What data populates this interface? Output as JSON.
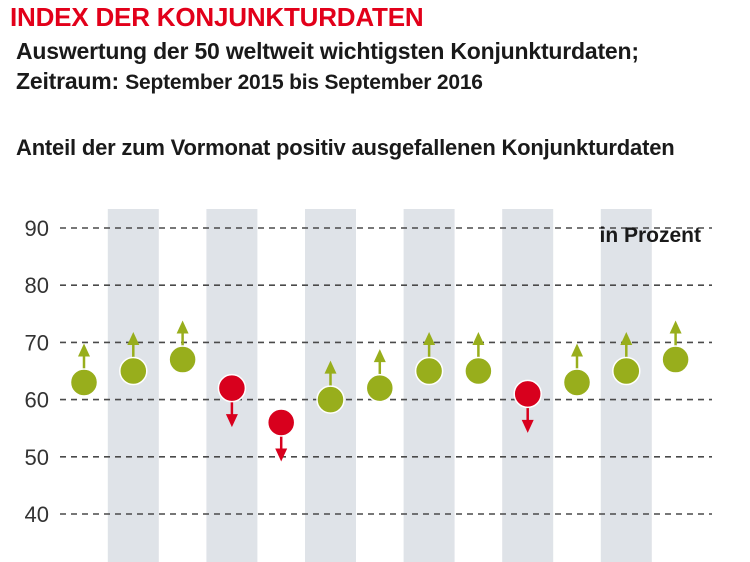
{
  "header": {
    "title": "INDEX DER KONJUNKTURDATEN",
    "subtitle_line1": "Auswertung der 50 weltweit wichtigsten Konjunkturdaten;",
    "subtitle_line2_label": "Zeitraum:",
    "subtitle_line2_value": "September 2015 bis September 2016"
  },
  "chart_data": {
    "type": "scatter",
    "title": "Anteil der zum Vormonat positiv ausgefallenen Konjunkturdaten",
    "unit_label": "in Prozent",
    "ylim": [
      40,
      90
    ],
    "yticks": [
      40,
      50,
      60,
      70,
      80,
      90
    ],
    "grid": true,
    "values": [
      63,
      65,
      67,
      62,
      56,
      60,
      62,
      65,
      65,
      61,
      63,
      65,
      67
    ],
    "direction": [
      "up",
      "up",
      "up",
      "down",
      "down",
      "up",
      "up",
      "up",
      "up",
      "down",
      "up",
      "up",
      "up"
    ],
    "shaded_columns": [
      1,
      3,
      5,
      7,
      9,
      11
    ],
    "colors": {
      "positive": "#98ae1c",
      "negative": "#d8001d",
      "shade": "#dfe3e8",
      "grid": "#4a4a4a"
    }
  }
}
